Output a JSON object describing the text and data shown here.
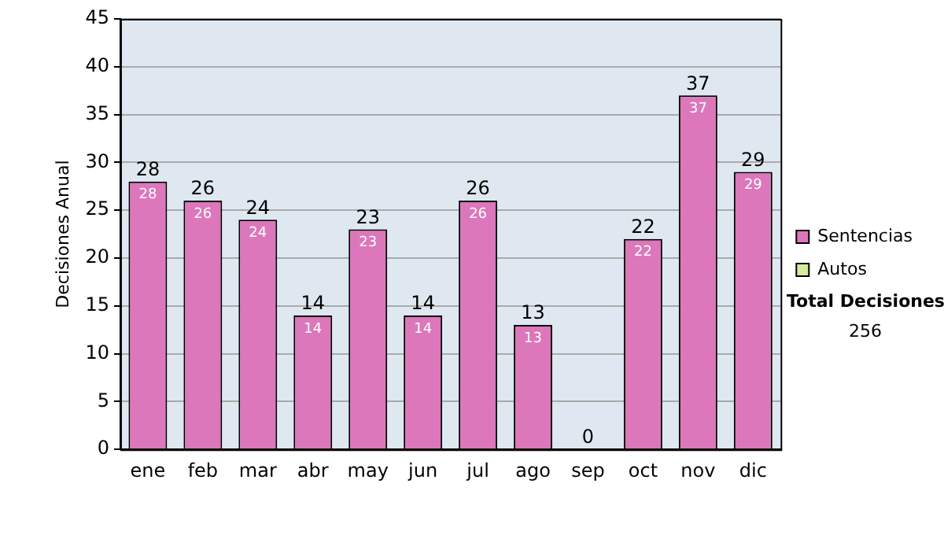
{
  "chart_data": {
    "type": "bar",
    "ylabel": "Decisiones Anual",
    "categories": [
      "ene",
      "feb",
      "mar",
      "abr",
      "may",
      "jun",
      "jul",
      "ago",
      "sep",
      "oct",
      "nov",
      "dic"
    ],
    "series": [
      {
        "name": "Sentencias",
        "color": "#dd77bb",
        "values": [
          28,
          26,
          24,
          14,
          23,
          14,
          26,
          13,
          0,
          22,
          37,
          29
        ],
        "value_labels": [
          "28",
          "26",
          "24",
          "14",
          "23",
          "14",
          "26",
          "13",
          null,
          "22",
          "37",
          "29"
        ]
      },
      {
        "name": "Autos",
        "color": "#d6eaa0",
        "values": [
          null,
          null,
          null,
          null,
          null,
          null,
          null,
          null,
          null,
          null,
          null,
          null
        ]
      }
    ],
    "stacked": true,
    "totals": [
      "28",
      "26",
      "24",
      "14",
      "23",
      "14",
      "26",
      "13",
      "0",
      "22",
      "37",
      "29"
    ],
    "ylim": [
      0,
      45
    ],
    "yticks": [
      0,
      5,
      10,
      15,
      20,
      25,
      30,
      35,
      40,
      45
    ],
    "grid": "y",
    "legend": "right",
    "annotations": [
      "Total Decisiones",
      "256"
    ]
  }
}
